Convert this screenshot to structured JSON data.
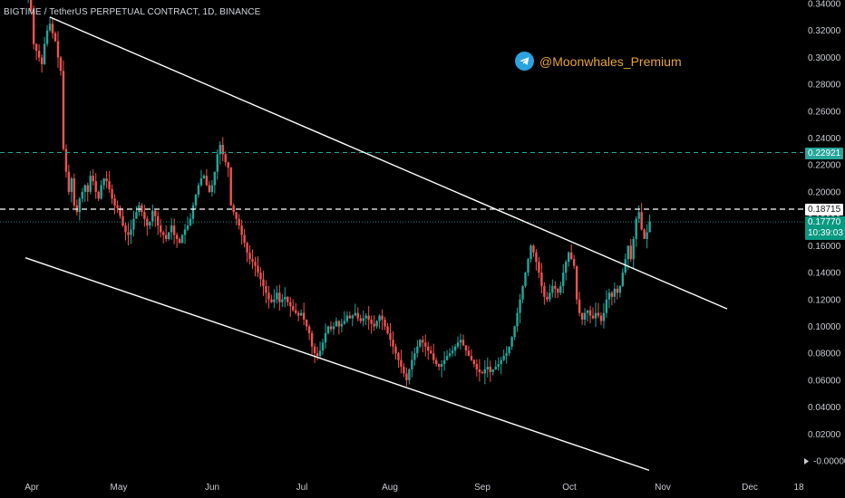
{
  "header": {
    "symbol": "BIGTIME / TetherUS PERPETUAL CONTRACT, 1D, BINANCE"
  },
  "watermark": {
    "handle": "@Moonwhales_Premium"
  },
  "price_tags": {
    "target": "0.22921",
    "resistance": "0.18715",
    "last": "0.17770",
    "countdown": "10:39:03"
  },
  "colors": {
    "background": "#000000",
    "up": "#26a69a",
    "down": "#ef5350",
    "trendline": "#ffffff",
    "target_line": "#26a69a",
    "brand": "#e8a33a",
    "telegram": "#2aa3e0"
  },
  "chart_data": {
    "type": "candlestick",
    "title": "BIGTIME / TetherUS PERPETUAL CONTRACT, 1D, BINANCE",
    "xlabel": "",
    "ylabel": "",
    "x_ticks": [
      "Apr",
      "May",
      "Jun",
      "Jul",
      "Aug",
      "Sep",
      "Oct",
      "Nov",
      "Dec",
      "18"
    ],
    "y_ticks": [
      "0.34000",
      "0.32000",
      "0.30000",
      "0.28000",
      "0.26000",
      "0.24000",
      "0.22000",
      "0.20000",
      "0.18000",
      "0.16000",
      "0.14000",
      "0.12000",
      "0.10000",
      "0.08000",
      "0.06000",
      "0.04000",
      "0.02000",
      "-0.00000"
    ],
    "ylim": [
      -0.005,
      0.345
    ],
    "grid": false,
    "horizontal_lines": [
      {
        "price": 0.22921,
        "style": "dashed",
        "color": "#26a69a"
      },
      {
        "price": 0.18715,
        "style": "dashed",
        "color": "#ffffff"
      },
      {
        "price": 0.1777,
        "style": "dotted",
        "color": "#26a69a"
      }
    ],
    "trendlines": [
      {
        "name": "upper",
        "from": [
          "Apr 7",
          0.33
        ],
        "to": [
          "Nov 4",
          0.113
        ]
      },
      {
        "name": "lower",
        "from": [
          "Mar 29",
          0.151
        ],
        "to": [
          "Nov 2",
          -0.007
        ]
      }
    ],
    "closes": [
      0.345,
      0.335,
      0.31,
      0.305,
      0.3,
      0.295,
      0.31,
      0.32,
      0.325,
      0.318,
      0.312,
      0.3,
      0.29,
      0.232,
      0.215,
      0.2,
      0.21,
      0.19,
      0.185,
      0.195,
      0.2,
      0.205,
      0.2,
      0.212,
      0.208,
      0.2,
      0.195,
      0.205,
      0.21,
      0.208,
      0.202,
      0.195,
      0.19,
      0.188,
      0.182,
      0.175,
      0.17,
      0.168,
      0.172,
      0.18,
      0.185,
      0.19,
      0.185,
      0.18,
      0.175,
      0.178,
      0.186,
      0.182,
      0.175,
      0.17,
      0.168,
      0.165,
      0.17,
      0.175,
      0.168,
      0.165,
      0.162,
      0.168,
      0.172,
      0.175,
      0.18,
      0.19,
      0.198,
      0.205,
      0.21,
      0.212,
      0.205,
      0.2,
      0.205,
      0.215,
      0.228,
      0.235,
      0.228,
      0.222,
      0.218,
      0.19,
      0.185,
      0.18,
      0.175,
      0.168,
      0.162,
      0.155,
      0.15,
      0.148,
      0.145,
      0.14,
      0.135,
      0.13,
      0.125,
      0.12,
      0.118,
      0.12,
      0.125,
      0.118,
      0.12,
      0.122,
      0.118,
      0.115,
      0.112,
      0.11,
      0.108,
      0.11,
      0.105,
      0.1,
      0.095,
      0.085,
      0.08,
      0.078,
      0.082,
      0.088,
      0.095,
      0.1,
      0.098,
      0.1,
      0.104,
      0.1,
      0.102,
      0.104,
      0.108,
      0.106,
      0.108,
      0.11,
      0.106,
      0.104,
      0.106,
      0.108,
      0.105,
      0.102,
      0.1,
      0.104,
      0.108,
      0.105,
      0.1,
      0.095,
      0.09,
      0.085,
      0.08,
      0.075,
      0.07,
      0.065,
      0.06,
      0.068,
      0.075,
      0.08,
      0.085,
      0.09,
      0.088,
      0.085,
      0.082,
      0.08,
      0.075,
      0.072,
      0.07,
      0.072,
      0.075,
      0.078,
      0.08,
      0.082,
      0.085,
      0.088,
      0.09,
      0.086,
      0.082,
      0.078,
      0.075,
      0.072,
      0.068,
      0.066,
      0.065,
      0.068,
      0.07,
      0.066,
      0.068,
      0.07,
      0.072,
      0.075,
      0.078,
      0.08,
      0.085,
      0.092,
      0.1,
      0.11,
      0.12,
      0.13,
      0.14,
      0.15,
      0.16,
      0.155,
      0.148,
      0.14,
      0.13,
      0.122,
      0.12,
      0.125,
      0.13,
      0.128,
      0.125,
      0.13,
      0.14,
      0.148,
      0.155,
      0.15,
      0.145,
      0.12,
      0.11,
      0.105,
      0.11,
      0.112,
      0.108,
      0.106,
      0.11,
      0.108,
      0.104,
      0.11,
      0.12,
      0.125,
      0.122,
      0.128,
      0.125,
      0.13,
      0.14,
      0.15,
      0.16,
      0.15,
      0.165,
      0.18,
      0.185,
      0.172,
      0.165,
      0.17,
      0.178
    ]
  }
}
